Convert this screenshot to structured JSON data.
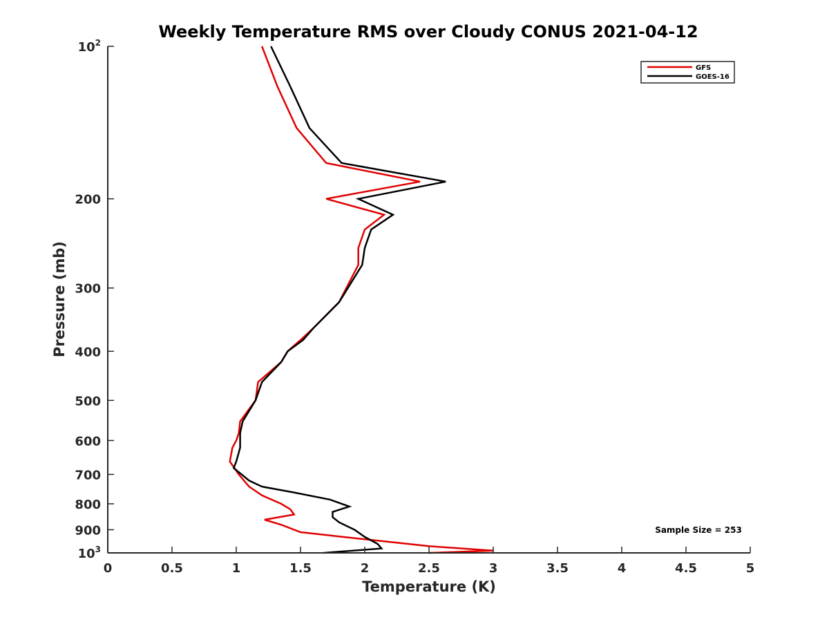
{
  "chart_data": {
    "type": "line",
    "title": "Weekly Temperature RMS over Cloudy CONUS 2021-04-12",
    "xlabel": "Temperature (K)",
    "ylabel": "Pressure (mb)",
    "xlim": [
      0,
      5
    ],
    "ylim": [
      100,
      1000
    ],
    "y_scale": "log",
    "y_reversed": true,
    "x_ticks": [
      0,
      0.5,
      1,
      1.5,
      2,
      2.5,
      3,
      3.5,
      4,
      4.5,
      5
    ],
    "x_tick_labels": [
      "0",
      "0.5",
      "1",
      "1.5",
      "2",
      "2.5",
      "3",
      "3.5",
      "4",
      "4.5",
      "5"
    ],
    "y_ticks": [
      {
        "value": 100,
        "label": "10",
        "exp": "2"
      },
      {
        "value": 200,
        "label": "200",
        "exp": ""
      },
      {
        "value": 300,
        "label": "300",
        "exp": ""
      },
      {
        "value": 400,
        "label": "400",
        "exp": ""
      },
      {
        "value": 500,
        "label": "500",
        "exp": ""
      },
      {
        "value": 600,
        "label": "600",
        "exp": ""
      },
      {
        "value": 700,
        "label": "700",
        "exp": ""
      },
      {
        "value": 800,
        "label": "800",
        "exp": ""
      },
      {
        "value": 900,
        "label": "900",
        "exp": ""
      },
      {
        "value": 1000,
        "label": "10",
        "exp": "3"
      }
    ],
    "grid": false,
    "legend_position": "top-right",
    "annotation": "Sample Size = 253",
    "series": [
      {
        "name": "GFS",
        "color": "#e00000",
        "points": [
          [
            1.2,
            100
          ],
          [
            1.32,
            120
          ],
          [
            1.47,
            145
          ],
          [
            1.7,
            170
          ],
          [
            2.43,
            185
          ],
          [
            1.7,
            200
          ],
          [
            2.15,
            215
          ],
          [
            2.0,
            230
          ],
          [
            1.95,
            250
          ],
          [
            1.95,
            270
          ],
          [
            1.8,
            320
          ],
          [
            1.6,
            360
          ],
          [
            1.5,
            380
          ],
          [
            1.4,
            400
          ],
          [
            1.35,
            420
          ],
          [
            1.17,
            460
          ],
          [
            1.15,
            500
          ],
          [
            1.03,
            550
          ],
          [
            1.02,
            580
          ],
          [
            1.0,
            600
          ],
          [
            0.97,
            620
          ],
          [
            0.95,
            660
          ],
          [
            1.02,
            700
          ],
          [
            1.1,
            740
          ],
          [
            1.2,
            770
          ],
          [
            1.35,
            800
          ],
          [
            1.42,
            820
          ],
          [
            1.45,
            840
          ],
          [
            1.22,
            860
          ],
          [
            1.35,
            880
          ],
          [
            1.5,
            910
          ],
          [
            2.0,
            940
          ],
          [
            2.5,
            970
          ],
          [
            3.0,
            990
          ],
          [
            2.5,
            1000
          ]
        ]
      },
      {
        "name": "GOES-16",
        "color": "#000000",
        "points": [
          [
            1.27,
            100
          ],
          [
            1.42,
            120
          ],
          [
            1.57,
            145
          ],
          [
            1.82,
            170
          ],
          [
            2.63,
            185
          ],
          [
            1.95,
            200
          ],
          [
            2.22,
            215
          ],
          [
            2.05,
            230
          ],
          [
            2.0,
            250
          ],
          [
            1.98,
            270
          ],
          [
            1.8,
            320
          ],
          [
            1.6,
            360
          ],
          [
            1.52,
            380
          ],
          [
            1.4,
            400
          ],
          [
            1.35,
            420
          ],
          [
            1.2,
            460
          ],
          [
            1.15,
            500
          ],
          [
            1.05,
            550
          ],
          [
            1.03,
            580
          ],
          [
            1.03,
            600
          ],
          [
            1.03,
            620
          ],
          [
            1.0,
            660
          ],
          [
            0.98,
            680
          ],
          [
            1.1,
            720
          ],
          [
            1.2,
            740
          ],
          [
            1.45,
            760
          ],
          [
            1.73,
            785
          ],
          [
            1.88,
            810
          ],
          [
            1.75,
            830
          ],
          [
            1.75,
            850
          ],
          [
            1.8,
            870
          ],
          [
            1.92,
            900
          ],
          [
            2.0,
            930
          ],
          [
            2.1,
            960
          ],
          [
            2.13,
            980
          ],
          [
            1.68,
            1000
          ]
        ]
      }
    ]
  }
}
